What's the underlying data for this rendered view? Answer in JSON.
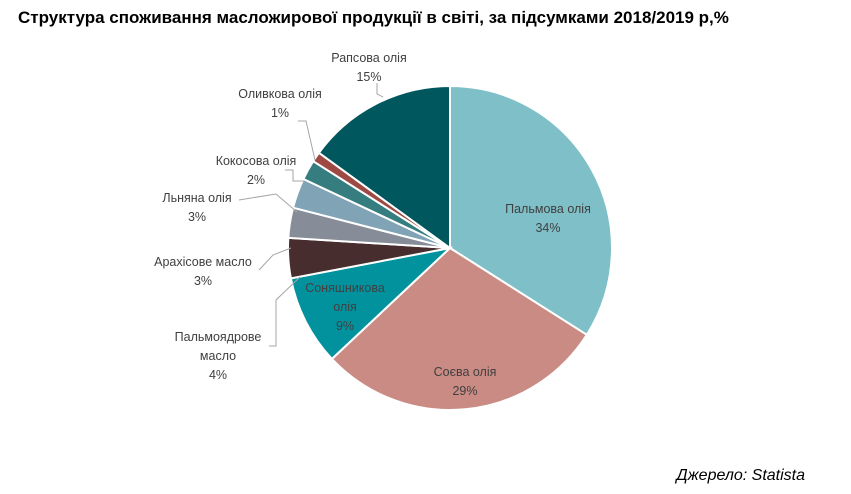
{
  "title": "Структура споживання масложирової продукції в світі, за підсумками 2018/2019 р,%",
  "source": "Джерело: Statista",
  "chart_data": {
    "type": "pie",
    "unit": "%",
    "slices": [
      {
        "label": [
          "Пальмова олія"
        ],
        "value": 34,
        "color": "#7fbfc8",
        "text": "34%"
      },
      {
        "label": [
          "Соєва олія"
        ],
        "value": 29,
        "color": "#c98b84",
        "text": "29%"
      },
      {
        "label": [
          "Соняшникова",
          "олія"
        ],
        "value": 9,
        "color": "#02929e",
        "text": "9%"
      },
      {
        "label": [
          "Пальмоядрове",
          "масло"
        ],
        "value": 4,
        "color": "#472d2d",
        "text": "4%"
      },
      {
        "label": [
          "Арахісове масло"
        ],
        "value": 3,
        "color": "#878c99",
        "text": "3%"
      },
      {
        "label": [
          "Льняна олія"
        ],
        "value": 3,
        "color": "#80a3b5",
        "text": "3%"
      },
      {
        "label": [
          "Кокосова олія"
        ],
        "value": 2,
        "color": "#357d7f",
        "text": "2%"
      },
      {
        "label": [
          "Оливкова олія"
        ],
        "value": 1,
        "color": "#9e4a44",
        "text": "1%"
      },
      {
        "label": [
          "Рапсова олія"
        ],
        "value": 15,
        "color": "#00575e",
        "text": "15%"
      }
    ]
  }
}
